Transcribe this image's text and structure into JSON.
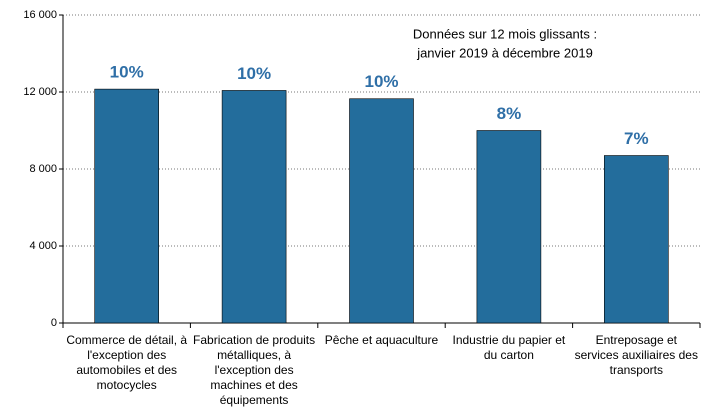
{
  "chart_data": {
    "type": "bar",
    "annotation": [
      "Données sur 12 mois glissants :",
      "janvier 2019 à décembre 2019"
    ],
    "categories": [
      "Commerce de détail, à l'exception des automobiles et des motocycles",
      "Fabrication de produits métalliques, à l'exception des machines et des équipements",
      "Pêche et aquaculture",
      "Industrie du papier et du carton",
      "Entreposage et services auxiliaires des transports"
    ],
    "values": [
      12150,
      12080,
      11650,
      10000,
      8700
    ],
    "bar_labels": [
      "10%",
      "10%",
      "10%",
      "8%",
      "7%"
    ],
    "color": "#236d9c",
    "ylim": [
      0,
      16000
    ],
    "yticks": [
      0,
      {
        "value": 4000,
        "label": "4 000"
      },
      {
        "value": 8000,
        "label": "8 000"
      },
      {
        "value": 12000,
        "label": "12 000"
      },
      {
        "value": 16000,
        "label": "16 000"
      }
    ],
    "grid": true
  }
}
